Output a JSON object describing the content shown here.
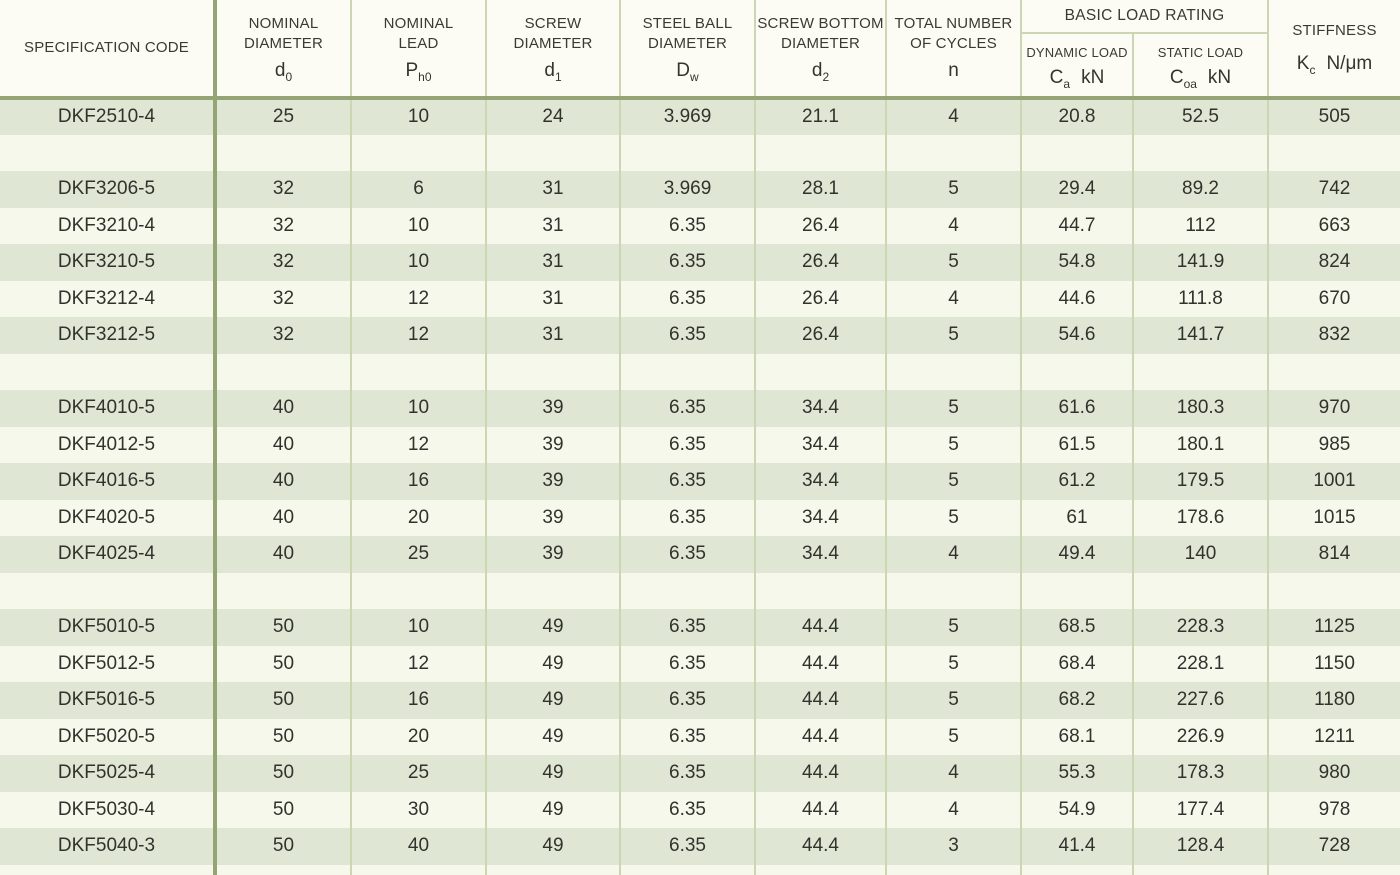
{
  "theme": {
    "accent_border": "#95a475",
    "thin_line": "#ccd6b2",
    "row_green": "#dfe6d4",
    "row_cream": "#f7f8ec",
    "header_bg": "#fcfcf4",
    "text": "#32322d"
  },
  "table": {
    "columns": [
      {
        "id": "spec_code",
        "label": "SPECIFICATION CODE"
      },
      {
        "id": "nominal_diameter",
        "label": "NOMINAL\nDIAMETER",
        "symbol_base": "d",
        "symbol_sub": "0"
      },
      {
        "id": "nominal_lead",
        "label": "NOMINAL\nLEAD",
        "symbol_base": "P",
        "symbol_sub": "h0"
      },
      {
        "id": "screw_diameter",
        "label": "SCREW\nDIAMETER",
        "symbol_base": "d",
        "symbol_sub": "1"
      },
      {
        "id": "steel_ball_diameter",
        "label": "STEEL BALL\nDIAMETER",
        "symbol_base": "D",
        "symbol_sub": "w"
      },
      {
        "id": "screw_bottom_diameter",
        "label": "SCREW BOTTOM\nDIAMETER",
        "symbol_base": "d",
        "symbol_sub": "2"
      },
      {
        "id": "total_number_of_cycles",
        "label": "TOTAL NUMBER\nOF CYCLES",
        "symbol_base": "n",
        "symbol_sub": ""
      },
      {
        "id": "dynamic_load",
        "label": "DYNAMIC LOAD",
        "symbol_base": "C",
        "symbol_sub": "a",
        "unit": "kN"
      },
      {
        "id": "static_load",
        "label": "STATIC LOAD",
        "symbol_base": "C",
        "symbol_sub": "oa",
        "unit": "kN"
      },
      {
        "id": "stiffness",
        "label": "STIFFNESS",
        "symbol_base": "K",
        "symbol_sub": "c",
        "unit": "N/μm"
      }
    ],
    "load_rating_group": {
      "label": "BASIC LOAD RATING"
    },
    "rows": [
      {
        "cells": [
          "DKF2510-4",
          "25",
          "10",
          "24",
          "3.969",
          "21.1",
          "4",
          "20.8",
          "52.5",
          "505"
        ]
      },
      {
        "spacer": true
      },
      {
        "cells": [
          "DKF3206-5",
          "32",
          "6",
          "31",
          "3.969",
          "28.1",
          "5",
          "29.4",
          "89.2",
          "742"
        ]
      },
      {
        "cells": [
          "DKF3210-4",
          "32",
          "10",
          "31",
          "6.35",
          "26.4",
          "4",
          "44.7",
          "112",
          "663"
        ]
      },
      {
        "cells": [
          "DKF3210-5",
          "32",
          "10",
          "31",
          "6.35",
          "26.4",
          "5",
          "54.8",
          "141.9",
          "824"
        ]
      },
      {
        "cells": [
          "DKF3212-4",
          "32",
          "12",
          "31",
          "6.35",
          "26.4",
          "4",
          "44.6",
          "111.8",
          "670"
        ]
      },
      {
        "cells": [
          "DKF3212-5",
          "32",
          "12",
          "31",
          "6.35",
          "26.4",
          "5",
          "54.6",
          "141.7",
          "832"
        ]
      },
      {
        "spacer": true
      },
      {
        "cells": [
          "DKF4010-5",
          "40",
          "10",
          "39",
          "6.35",
          "34.4",
          "5",
          "61.6",
          "180.3",
          "970"
        ]
      },
      {
        "cells": [
          "DKF4012-5",
          "40",
          "12",
          "39",
          "6.35",
          "34.4",
          "5",
          "61.5",
          "180.1",
          "985"
        ]
      },
      {
        "cells": [
          "DKF4016-5",
          "40",
          "16",
          "39",
          "6.35",
          "34.4",
          "5",
          "61.2",
          "179.5",
          "1001"
        ]
      },
      {
        "cells": [
          "DKF4020-5",
          "40",
          "20",
          "39",
          "6.35",
          "34.4",
          "5",
          "61",
          "178.6",
          "1015"
        ]
      },
      {
        "cells": [
          "DKF4025-4",
          "40",
          "25",
          "39",
          "6.35",
          "34.4",
          "4",
          "49.4",
          "140",
          "814"
        ]
      },
      {
        "spacer": true
      },
      {
        "cells": [
          "DKF5010-5",
          "50",
          "10",
          "49",
          "6.35",
          "44.4",
          "5",
          "68.5",
          "228.3",
          "1125"
        ]
      },
      {
        "cells": [
          "DKF5012-5",
          "50",
          "12",
          "49",
          "6.35",
          "44.4",
          "5",
          "68.4",
          "228.1",
          "1150"
        ]
      },
      {
        "cells": [
          "DKF5016-5",
          "50",
          "16",
          "49",
          "6.35",
          "44.4",
          "5",
          "68.2",
          "227.6",
          "1180"
        ]
      },
      {
        "cells": [
          "DKF5020-5",
          "50",
          "20",
          "49",
          "6.35",
          "44.4",
          "5",
          "68.1",
          "226.9",
          "1211"
        ]
      },
      {
        "cells": [
          "DKF5025-4",
          "50",
          "25",
          "49",
          "6.35",
          "44.4",
          "4",
          "55.3",
          "178.3",
          "980"
        ]
      },
      {
        "cells": [
          "DKF5030-4",
          "50",
          "30",
          "49",
          "6.35",
          "44.4",
          "4",
          "54.9",
          "177.4",
          "978"
        ]
      },
      {
        "cells": [
          "DKF5040-3",
          "50",
          "40",
          "49",
          "6.35",
          "44.4",
          "3",
          "41.4",
          "128.4",
          "728"
        ]
      },
      {
        "spacer": true,
        "partial": true
      }
    ]
  }
}
